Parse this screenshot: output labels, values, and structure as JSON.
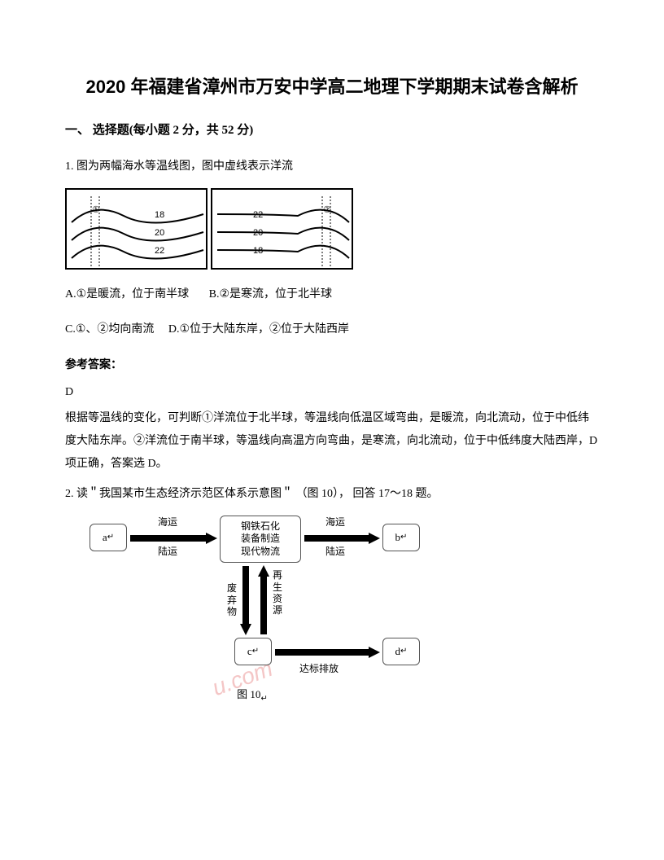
{
  "title": "2020 年福建省漳州市万安中学高二地理下学期期末试卷含解析",
  "section1": {
    "header": "一、 选择题(每小题 2 分，共 52 分)"
  },
  "q1": {
    "stem": "1. 图为两幅海水等温线图，图中虚线表示洋流",
    "chart": {
      "left": {
        "marker": "①",
        "iso_labels": [
          "18",
          "20",
          "22"
        ]
      },
      "right": {
        "marker": "②",
        "iso_labels": [
          "22",
          "20",
          "18"
        ]
      }
    },
    "optA": "A.①是暖流，位于南半球",
    "optB": "B.②是寒流，位于北半球",
    "optC": "C.①、②均向南流",
    "optD": "D.①位于大陆东岸，②位于大陆西岸",
    "answer_label": "参考答案：",
    "answer": "D",
    "explanation": "根据等温线的变化，可判断①洋流位于北半球，等温线向低温区域弯曲，是暖流，向北流动，位于中低纬度大陆东岸。②洋流位于南半球，等温线向高温方向弯曲，是寒流，向北流动，位于中低纬度大陆西岸，D 项正确，答案选 D。"
  },
  "q2": {
    "stem": "2. 读＂我国某市生态经济示范区体系示意图＂ （图 10），  回答  17～18 题。",
    "diagram": {
      "nodes": {
        "a": "a",
        "b": "b",
        "c": "c",
        "d": "d",
        "center": "钢铁石化\n装备制造\n现代物流"
      },
      "edges": {
        "a_center_top": "海运",
        "a_center_bot": "陆运",
        "center_b_top": "海运",
        "center_b_bot": "陆运",
        "center_c_left": "废弃物",
        "center_c_right": "再生资源",
        "c_d": "达标排放"
      },
      "caption": "图 10"
    }
  },
  "colors": {
    "text": "#000000",
    "bg": "#ffffff",
    "watermark": "#f2b8b8",
    "node_border": "#555555"
  }
}
